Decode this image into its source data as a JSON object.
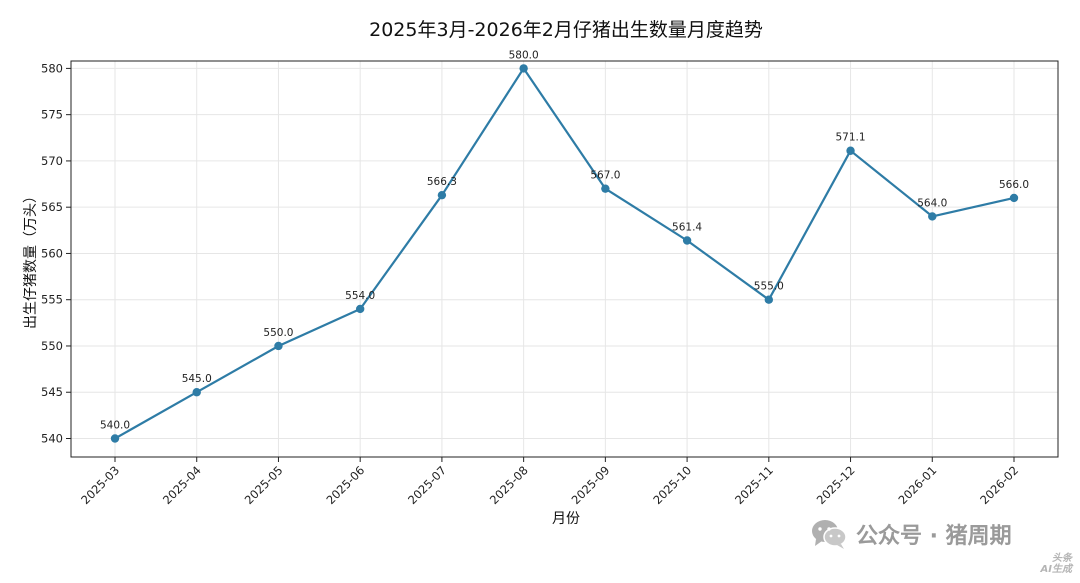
{
  "chart_data": {
    "type": "line",
    "title": "2025年3月-2026年2月仔猪出生数量月度趋势",
    "xlabel": "月份",
    "ylabel": "出生仔猪数量（万头）",
    "categories": [
      "2025-03",
      "2025-04",
      "2025-05",
      "2025-06",
      "2025-07",
      "2025-08",
      "2025-09",
      "2025-10",
      "2025-11",
      "2025-12",
      "2026-01",
      "2026-02"
    ],
    "values": [
      540.0,
      545.0,
      550.0,
      554.0,
      566.3,
      580.0,
      567.0,
      561.4,
      555.0,
      571.1,
      564.0,
      566.0
    ],
    "data_labels": [
      "540.0",
      "545.0",
      "550.0",
      "554.0",
      "566.3",
      "580.0",
      "567.0",
      "561.4",
      "555.0",
      "571.1",
      "564.0",
      "566.0"
    ],
    "yticks": [
      540,
      545,
      550,
      555,
      560,
      565,
      570,
      575,
      580
    ],
    "ylim": [
      538,
      580.8
    ],
    "grid": true,
    "color": "#2e7ca6"
  },
  "watermark": {
    "icon": "wechat-icon",
    "text": "公众号 · 猪周期",
    "badge_line1": "头条",
    "badge_line2": "AI生成"
  }
}
